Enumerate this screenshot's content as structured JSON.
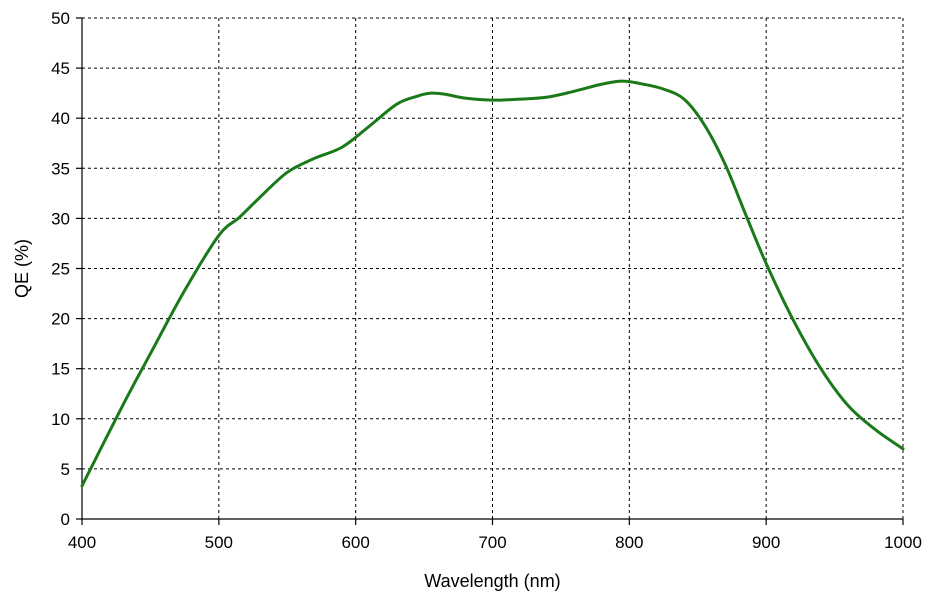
{
  "chart_data": {
    "type": "line",
    "title": "",
    "xlabel": "Wavelength (nm)",
    "ylabel": "QE (%)",
    "xlim": [
      400,
      1000
    ],
    "ylim": [
      0,
      50
    ],
    "x_ticks": [
      "400",
      "500",
      "600",
      "700",
      "800",
      "900",
      "1000"
    ],
    "y_ticks": [
      "0",
      "5",
      "10",
      "15",
      "20",
      "25",
      "30",
      "35",
      "40",
      "45",
      "50"
    ],
    "grid": true,
    "legend": "none",
    "series": [
      {
        "color": "#1a7a1a",
        "x": [
          400,
          430,
          450,
          475,
          500,
          515,
          530,
          550,
          570,
          590,
          610,
          630,
          645,
          655,
          665,
          680,
          700,
          720,
          740,
          760,
          780,
          795,
          810,
          825,
          840,
          855,
          870,
          885,
          900,
          920,
          940,
          960,
          980,
          1000
        ],
        "y": [
          3.3,
          11.4,
          16.5,
          22.8,
          28.3,
          30.1,
          32.1,
          34.6,
          36.0,
          37.1,
          39.2,
          41.4,
          42.2,
          42.5,
          42.4,
          42.0,
          41.8,
          41.9,
          42.1,
          42.7,
          43.4,
          43.7,
          43.4,
          42.9,
          41.9,
          39.3,
          35.4,
          30.4,
          25.5,
          19.8,
          15.0,
          11.3,
          8.9,
          7.0
        ]
      }
    ]
  }
}
